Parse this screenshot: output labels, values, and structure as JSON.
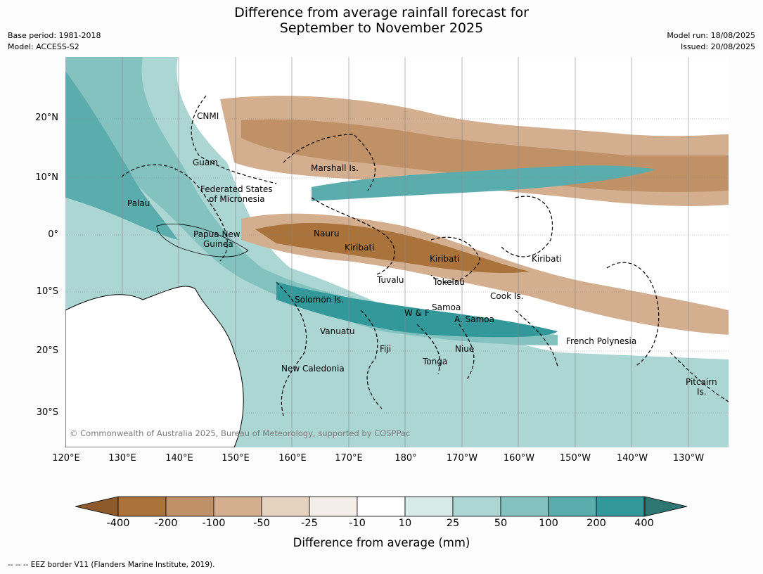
{
  "title_line1": "Difference from average rainfall forecast for",
  "title_line2": "September to November 2025",
  "meta_left": [
    "Base period: 1981-2018",
    "Model: ACCESS-S2"
  ],
  "meta_right": [
    "Model run: 18/08/2025",
    "Issued: 20/08/2025"
  ],
  "lat_labels": [
    "20°N",
    "10°N",
    "0°",
    "10°S",
    "20°S",
    "30°S"
  ],
  "lon_labels": [
    "120°E",
    "130°E",
    "140°E",
    "150°E",
    "160°E",
    "170°E",
    "180°",
    "170°W",
    "160°W",
    "150°W",
    "140°W",
    "130°W"
  ],
  "places": [
    "CNMI",
    "Guam",
    "Marshall Is.",
    "Federated States",
    "of Micronesia",
    "Palau",
    "Papua New",
    "Guinea",
    "Nauru",
    "Kiribati",
    "Kiribati",
    "Kiribati",
    "Tuvalu",
    "Tokelau",
    "Cook Is.",
    "Solomon Is.",
    "W & F",
    "Samoa",
    "A. Samoa",
    "Vanuatu",
    "Fiji",
    "Niue",
    "French Polynesia",
    "Tonga",
    "New Caledonia",
    "Pitcairn",
    "Is."
  ],
  "copyright": "© Commonwealth of Australia 2025, Bureau of Meteorology, supported by COSPPac",
  "colorbar": {
    "ticks": [
      "-400",
      "-200",
      "-100",
      "-50",
      "-25",
      "-10",
      "10",
      "25",
      "50",
      "100",
      "200",
      "400"
    ],
    "colors": [
      "#8c5a2b",
      "#a9733b",
      "#c09166",
      "#d3ae8f",
      "#e5d2bf",
      "#f3efe8",
      "#ffffff",
      "#d6eae8",
      "#acd6d3",
      "#84c2c0",
      "#5badad",
      "#32989a",
      "#2e7672"
    ],
    "label": "Difference from average (mm)"
  },
  "footnote": "--  --  -- EEZ border V11 (Flanders Marine Institute, 2019)."
}
